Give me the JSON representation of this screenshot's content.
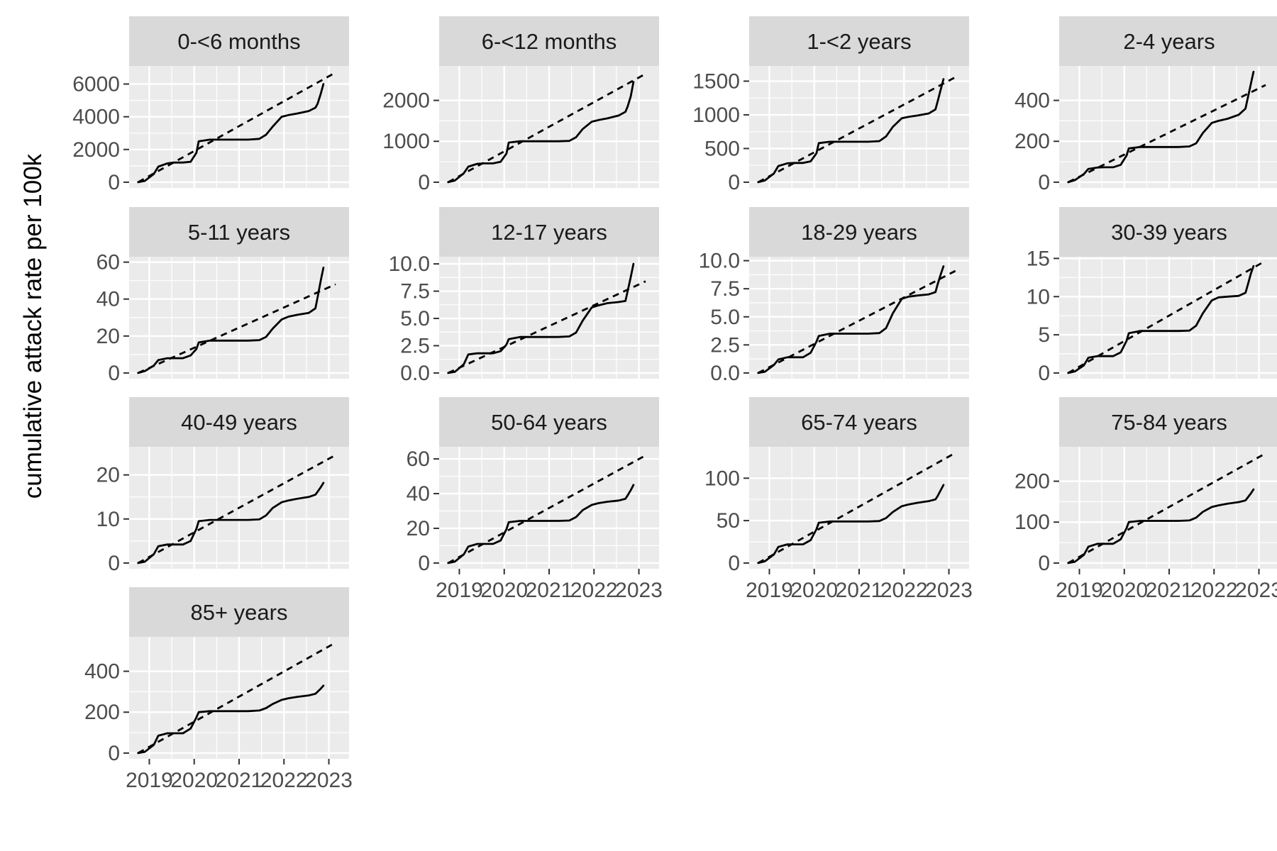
{
  "figure": {
    "ylabel": "cumulative attack rate per 100k",
    "xlabel": "",
    "x_ticks": [
      "2019",
      "2020",
      "2021",
      "2022",
      "2023"
    ],
    "colors": {
      "panel_bg": "#ebebeb",
      "grid": "#ffffff",
      "strip_bg": "#d9d9d9",
      "line": "#000000"
    }
  },
  "chart_data": [
    {
      "type": "line",
      "title": "0-<6 months",
      "ylim": [
        0,
        7000
      ],
      "yticks": [
        0,
        2000,
        4000,
        6000
      ],
      "series": [
        {
          "name": "",
          "style": "solid",
          "x": [
            2018.75,
            2018.9,
            2019.1,
            2019.2,
            2019.4,
            2019.55,
            2019.75,
            2019.92,
            2020.05,
            2020.1,
            2020.35,
            2020.6,
            2020.9,
            2021.2,
            2021.45,
            2021.6,
            2021.75,
            2021.95,
            2022.1,
            2022.3,
            2022.55,
            2022.7,
            2022.75,
            2022.82,
            2022.88
          ],
          "y": [
            0,
            80,
            500,
            950,
            1150,
            1200,
            1200,
            1250,
            1800,
            2500,
            2600,
            2600,
            2600,
            2600,
            2650,
            2900,
            3400,
            4000,
            4100,
            4200,
            4350,
            4550,
            4800,
            5400,
            6000
          ]
        },
        {
          "name": "",
          "style": "dashed",
          "x": [
            2018.75,
            2023.15
          ],
          "y": [
            0,
            6700
          ]
        }
      ]
    },
    {
      "type": "line",
      "title": "6-<12 months",
      "ylim": [
        0,
        2800
      ],
      "yticks": [
        0,
        1000,
        2000
      ],
      "series": [
        {
          "name": "",
          "style": "solid",
          "x": [
            2018.75,
            2018.9,
            2019.1,
            2019.2,
            2019.4,
            2019.55,
            2019.75,
            2019.92,
            2020.05,
            2020.1,
            2020.35,
            2020.6,
            2020.9,
            2021.2,
            2021.45,
            2021.6,
            2021.75,
            2021.95,
            2022.1,
            2022.3,
            2022.55,
            2022.7,
            2022.75,
            2022.82,
            2022.88
          ],
          "y": [
            0,
            40,
            220,
            380,
            450,
            460,
            460,
            500,
            700,
            970,
            1000,
            1000,
            1000,
            1000,
            1010,
            1100,
            1300,
            1480,
            1520,
            1560,
            1630,
            1720,
            1850,
            2100,
            2450
          ]
        },
        {
          "name": "",
          "style": "dashed",
          "x": [
            2018.75,
            2023.15
          ],
          "y": [
            0,
            2650
          ]
        }
      ]
    },
    {
      "type": "line",
      "title": "1-<2 years",
      "ylim": [
        0,
        1700
      ],
      "yticks": [
        0,
        500,
        1000,
        1500
      ],
      "series": [
        {
          "name": "",
          "style": "solid",
          "x": [
            2018.75,
            2018.9,
            2019.1,
            2019.2,
            2019.4,
            2019.55,
            2019.75,
            2019.92,
            2020.05,
            2020.1,
            2020.35,
            2020.6,
            2020.9,
            2021.2,
            2021.45,
            2021.6,
            2021.75,
            2021.95,
            2022.1,
            2022.3,
            2022.55,
            2022.7,
            2022.75,
            2022.82,
            2022.88
          ],
          "y": [
            0,
            25,
            130,
            240,
            280,
            285,
            285,
            310,
            430,
            580,
            600,
            600,
            600,
            600,
            610,
            680,
            820,
            950,
            970,
            990,
            1020,
            1080,
            1200,
            1380,
            1530
          ]
        },
        {
          "name": "",
          "style": "dashed",
          "x": [
            2018.75,
            2023.15
          ],
          "y": [
            0,
            1560
          ]
        }
      ]
    },
    {
      "type": "line",
      "title": "2-4 years",
      "ylim": [
        0,
        560
      ],
      "yticks": [
        0,
        200,
        400
      ],
      "series": [
        {
          "name": "",
          "style": "solid",
          "x": [
            2018.75,
            2018.9,
            2019.1,
            2019.2,
            2019.4,
            2019.55,
            2019.75,
            2019.92,
            2020.05,
            2020.1,
            2020.35,
            2020.6,
            2020.9,
            2021.2,
            2021.45,
            2021.6,
            2021.75,
            2021.95,
            2022.1,
            2022.3,
            2022.55,
            2022.7,
            2022.75,
            2022.82,
            2022.88
          ],
          "y": [
            0,
            10,
            40,
            65,
            72,
            73,
            73,
            85,
            130,
            165,
            172,
            172,
            172,
            172,
            175,
            190,
            240,
            290,
            300,
            310,
            330,
            360,
            410,
            480,
            540
          ]
        },
        {
          "name": "",
          "style": "dashed",
          "x": [
            2018.75,
            2023.15
          ],
          "y": [
            0,
            475
          ]
        }
      ]
    },
    {
      "type": "line",
      "title": "5-11 years",
      "ylim": [
        0,
        62
      ],
      "yticks": [
        0,
        20,
        40,
        60
      ],
      "series": [
        {
          "name": "",
          "style": "solid",
          "x": [
            2018.75,
            2018.9,
            2019.1,
            2019.2,
            2019.4,
            2019.55,
            2019.75,
            2019.92,
            2020.05,
            2020.1,
            2020.35,
            2020.6,
            2020.9,
            2021.2,
            2021.45,
            2021.6,
            2021.75,
            2021.95,
            2022.1,
            2022.3,
            2022.55,
            2022.7,
            2022.75,
            2022.82,
            2022.88
          ],
          "y": [
            0,
            1,
            4,
            7,
            8,
            8,
            8,
            9.5,
            13,
            16.5,
            17.5,
            17.5,
            17.5,
            17.5,
            17.8,
            19.5,
            24,
            29,
            30.5,
            31.5,
            32.5,
            35,
            41,
            50,
            57
          ]
        },
        {
          "name": "",
          "style": "dashed",
          "x": [
            2018.75,
            2023.15
          ],
          "y": [
            0,
            48
          ]
        }
      ]
    },
    {
      "type": "line",
      "title": "12-17 years",
      "ylim": [
        0,
        10.5
      ],
      "yticks": [
        0.0,
        2.5,
        5.0,
        7.5,
        10.0
      ],
      "series": [
        {
          "name": "",
          "style": "solid",
          "x": [
            2018.75,
            2018.9,
            2019.1,
            2019.2,
            2019.4,
            2019.55,
            2019.75,
            2019.92,
            2020.05,
            2020.1,
            2020.35,
            2020.6,
            2020.9,
            2021.2,
            2021.45,
            2021.6,
            2021.75,
            2021.95,
            2022.1,
            2022.3,
            2022.55,
            2022.7,
            2022.75,
            2022.82,
            2022.88
          ],
          "y": [
            0,
            0.1,
            0.8,
            1.7,
            1.8,
            1.8,
            1.8,
            2.0,
            2.6,
            3.1,
            3.3,
            3.3,
            3.3,
            3.3,
            3.35,
            3.7,
            4.8,
            6.0,
            6.2,
            6.4,
            6.5,
            6.6,
            7.5,
            8.8,
            10.0
          ]
        },
        {
          "name": "",
          "style": "dashed",
          "x": [
            2018.75,
            2023.15
          ],
          "y": [
            0,
            8.4
          ]
        }
      ]
    },
    {
      "type": "line",
      "title": "18-29 years",
      "ylim": [
        0,
        10.2
      ],
      "yticks": [
        0.0,
        2.5,
        5.0,
        7.5,
        10.0
      ],
      "series": [
        {
          "name": "",
          "style": "solid",
          "x": [
            2018.75,
            2018.9,
            2019.1,
            2019.2,
            2019.4,
            2019.55,
            2019.75,
            2019.92,
            2020.05,
            2020.1,
            2020.35,
            2020.6,
            2020.9,
            2021.2,
            2021.45,
            2021.6,
            2021.75,
            2021.95,
            2022.1,
            2022.3,
            2022.55,
            2022.7,
            2022.75,
            2022.82,
            2022.88
          ],
          "y": [
            0,
            0.1,
            0.7,
            1.2,
            1.4,
            1.4,
            1.4,
            1.8,
            2.8,
            3.3,
            3.5,
            3.5,
            3.5,
            3.5,
            3.55,
            4.0,
            5.3,
            6.6,
            6.8,
            6.9,
            7.0,
            7.2,
            7.9,
            8.8,
            9.5
          ]
        },
        {
          "name": "",
          "style": "dashed",
          "x": [
            2018.75,
            2023.15
          ],
          "y": [
            0,
            9.1
          ]
        }
      ]
    },
    {
      "type": "line",
      "title": "30-39 years",
      "ylim": [
        0,
        15
      ],
      "yticks": [
        0,
        5,
        10,
        15
      ],
      "series": [
        {
          "name": "",
          "style": "solid",
          "x": [
            2018.75,
            2018.9,
            2019.1,
            2019.2,
            2019.4,
            2019.55,
            2019.75,
            2019.92,
            2020.05,
            2020.1,
            2020.35,
            2020.6,
            2020.9,
            2021.2,
            2021.45,
            2021.6,
            2021.75,
            2021.95,
            2022.1,
            2022.3,
            2022.55,
            2022.7,
            2022.75,
            2022.82,
            2022.88
          ],
          "y": [
            0,
            0.2,
            1.0,
            2.0,
            2.2,
            2.2,
            2.2,
            2.7,
            4.2,
            5.2,
            5.5,
            5.5,
            5.5,
            5.5,
            5.55,
            6.2,
            7.8,
            9.5,
            9.9,
            10.0,
            10.1,
            10.5,
            11.5,
            13.0,
            14.0
          ]
        },
        {
          "name": "",
          "style": "dashed",
          "x": [
            2018.75,
            2023.15
          ],
          "y": [
            0,
            14.7
          ]
        }
      ]
    },
    {
      "type": "line",
      "title": "40-49 years",
      "ylim": [
        0,
        26
      ],
      "yticks": [
        0,
        10,
        20
      ],
      "series": [
        {
          "name": "",
          "style": "solid",
          "x": [
            2018.75,
            2018.9,
            2019.1,
            2019.2,
            2019.4,
            2019.55,
            2019.75,
            2019.92,
            2020.05,
            2020.1,
            2020.35,
            2020.6,
            2020.9,
            2021.2,
            2021.45,
            2021.6,
            2021.75,
            2021.95,
            2022.1,
            2022.3,
            2022.55,
            2022.7,
            2022.75,
            2022.82,
            2022.88
          ],
          "y": [
            0,
            0.3,
            2.0,
            3.8,
            4.2,
            4.2,
            4.2,
            5.0,
            7.8,
            9.5,
            9.8,
            9.8,
            9.8,
            9.8,
            9.9,
            10.8,
            12.5,
            13.8,
            14.2,
            14.6,
            15.0,
            15.5,
            16.2,
            17.2,
            18.2
          ]
        },
        {
          "name": "",
          "style": "dashed",
          "x": [
            2018.75,
            2023.15
          ],
          "y": [
            0,
            24.5
          ]
        }
      ]
    },
    {
      "type": "line",
      "title": "50-64 years",
      "ylim": [
        0,
        66
      ],
      "yticks": [
        0,
        20,
        40,
        60
      ],
      "series": [
        {
          "name": "",
          "style": "solid",
          "x": [
            2018.75,
            2018.9,
            2019.1,
            2019.2,
            2019.4,
            2019.55,
            2019.75,
            2019.92,
            2020.05,
            2020.1,
            2020.35,
            2020.6,
            2020.9,
            2021.2,
            2021.45,
            2021.6,
            2021.75,
            2021.95,
            2022.1,
            2022.3,
            2022.55,
            2022.7,
            2022.75,
            2022.82,
            2022.88
          ],
          "y": [
            0,
            0.8,
            5,
            9.5,
            11,
            11,
            11,
            13,
            19.5,
            23.5,
            24.3,
            24.3,
            24.3,
            24.3,
            24.5,
            26.5,
            30.5,
            33.5,
            34.5,
            35.3,
            36,
            37,
            39,
            42,
            45
          ]
        },
        {
          "name": "",
          "style": "dashed",
          "x": [
            2018.75,
            2023.15
          ],
          "y": [
            0,
            62
          ]
        }
      ]
    },
    {
      "type": "line",
      "title": "65-74 years",
      "ylim": [
        0,
        135
      ],
      "yticks": [
        0,
        50,
        100
      ],
      "series": [
        {
          "name": "",
          "style": "solid",
          "x": [
            2018.75,
            2018.9,
            2019.1,
            2019.2,
            2019.4,
            2019.55,
            2019.75,
            2019.92,
            2020.05,
            2020.1,
            2020.35,
            2020.6,
            2020.9,
            2021.2,
            2021.45,
            2021.6,
            2021.75,
            2021.95,
            2022.1,
            2022.3,
            2022.55,
            2022.7,
            2022.75,
            2022.82,
            2022.88
          ],
          "y": [
            0,
            2,
            10,
            19,
            22,
            22,
            22,
            27,
            40,
            47.5,
            49,
            49,
            49,
            49,
            49.5,
            53,
            60,
            67,
            69,
            71,
            73,
            75,
            79,
            86,
            92
          ]
        },
        {
          "name": "",
          "style": "dashed",
          "x": [
            2018.75,
            2023.15
          ],
          "y": [
            0,
            130
          ]
        }
      ]
    },
    {
      "type": "line",
      "title": "75-84 years",
      "ylim": [
        0,
        280
      ],
      "yticks": [
        0,
        100,
        200
      ],
      "series": [
        {
          "name": "",
          "style": "solid",
          "x": [
            2018.75,
            2018.9,
            2019.1,
            2019.2,
            2019.4,
            2019.55,
            2019.75,
            2019.92,
            2020.05,
            2020.1,
            2020.35,
            2020.6,
            2020.9,
            2021.2,
            2021.45,
            2021.6,
            2021.75,
            2021.95,
            2022.1,
            2022.3,
            2022.55,
            2022.7,
            2022.75,
            2022.82,
            2022.88
          ],
          "y": [
            0,
            3,
            20,
            40,
            47,
            47,
            47,
            58,
            85,
            100,
            103,
            103,
            103,
            103,
            104,
            111,
            125,
            137,
            141,
            145,
            149,
            153,
            160,
            170,
            180
          ]
        },
        {
          "name": "",
          "style": "dashed",
          "x": [
            2018.75,
            2023.15
          ],
          "y": [
            0,
            268
          ]
        }
      ]
    },
    {
      "type": "line",
      "title": "85+ years",
      "ylim": [
        0,
        560
      ],
      "yticks": [
        0,
        200,
        400
      ],
      "series": [
        {
          "name": "",
          "style": "solid",
          "x": [
            2018.75,
            2018.9,
            2019.1,
            2019.2,
            2019.4,
            2019.55,
            2019.75,
            2019.92,
            2020.05,
            2020.1,
            2020.35,
            2020.6,
            2020.9,
            2021.2,
            2021.45,
            2021.6,
            2021.75,
            2021.95,
            2022.1,
            2022.3,
            2022.55,
            2022.7,
            2022.75,
            2022.82,
            2022.88
          ],
          "y": [
            0,
            6,
            40,
            85,
            97,
            97,
            97,
            120,
            175,
            200,
            205,
            205,
            205,
            205,
            208,
            220,
            240,
            260,
            268,
            275,
            282,
            290,
            300,
            315,
            330
          ]
        },
        {
          "name": "",
          "style": "dashed",
          "x": [
            2018.75,
            2023.15
          ],
          "y": [
            0,
            540
          ]
        }
      ]
    }
  ]
}
